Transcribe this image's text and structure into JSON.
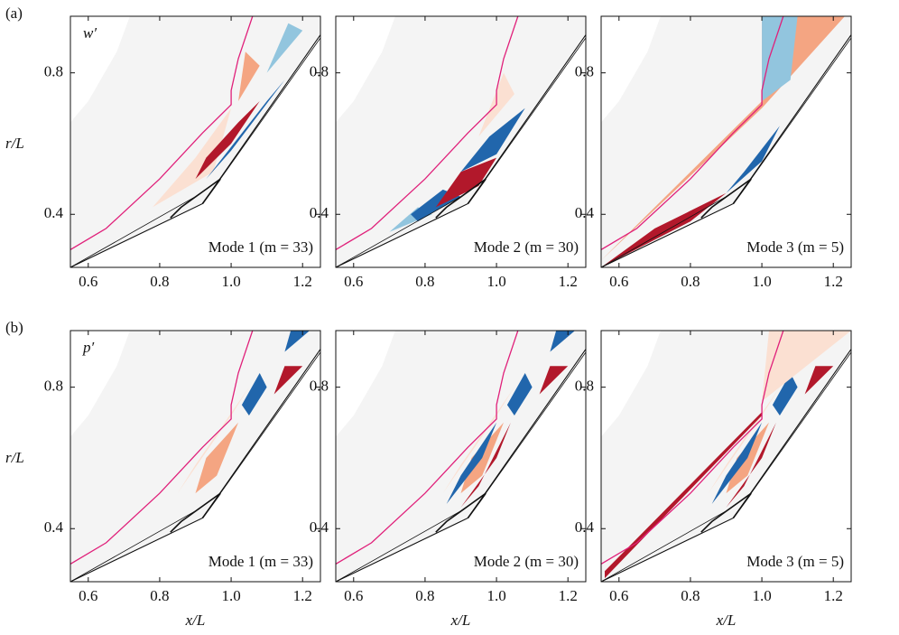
{
  "chart_data": [
    {
      "type": "contour",
      "panel_label": "(a)",
      "field_label": "w′",
      "annotation": "Mode 1 (m = 33)",
      "ylabel": "r/L",
      "xlim": [
        0.55,
        1.25
      ],
      "ylim": [
        0.25,
        0.96
      ],
      "xticks": [
        0.6,
        0.8,
        {
          "value": 1,
          "label": "1.0"
        },
        1.2
      ],
      "yticks": [
        0.4,
        0.8
      ]
    },
    {
      "type": "contour",
      "annotation": "Mode 2 (m = 30)",
      "xlim": [
        0.55,
        1.25
      ],
      "ylim": [
        0.25,
        0.96
      ],
      "xticks": [
        0.6,
        0.8,
        {
          "value": 1,
          "label": "1.0"
        },
        1.2
      ],
      "yticks": [
        0.4,
        0.8
      ]
    },
    {
      "type": "contour",
      "annotation": "Mode 3 (m = 5)",
      "xlim": [
        0.55,
        1.25
      ],
      "ylim": [
        0.25,
        0.96
      ],
      "xticks": [
        0.6,
        0.8,
        {
          "value": 1,
          "label": "1.0"
        },
        1.2
      ],
      "yticks": [
        0.4,
        0.8
      ]
    },
    {
      "type": "contour",
      "panel_label": "(b)",
      "field_label": "p′",
      "annotation": "Mode 1 (m = 33)",
      "ylabel": "r/L",
      "xlabel": "x/L",
      "xlim": [
        0.55,
        1.25
      ],
      "ylim": [
        0.25,
        0.96
      ],
      "xticks": [
        0.6,
        0.8,
        {
          "value": 1,
          "label": "1.0"
        },
        1.2
      ],
      "yticks": [
        0.4,
        0.8
      ]
    },
    {
      "type": "contour",
      "annotation": "Mode 2 (m = 30)",
      "xlabel": "x/L",
      "xlim": [
        0.55,
        1.25
      ],
      "ylim": [
        0.25,
        0.96
      ],
      "xticks": [
        0.6,
        0.8,
        {
          "value": 1,
          "label": "1.0"
        },
        1.2
      ],
      "yticks": [
        0.4,
        0.8
      ]
    },
    {
      "type": "contour",
      "annotation": "Mode 3 (m = 5)",
      "xlabel": "x/L",
      "xlim": [
        0.55,
        1.25
      ],
      "ylim": [
        0.25,
        0.96
      ],
      "xticks": [
        0.6,
        0.8,
        {
          "value": 1,
          "label": "1.0"
        },
        1.2
      ],
      "yticks": [
        0.4,
        0.8
      ]
    }
  ]
}
